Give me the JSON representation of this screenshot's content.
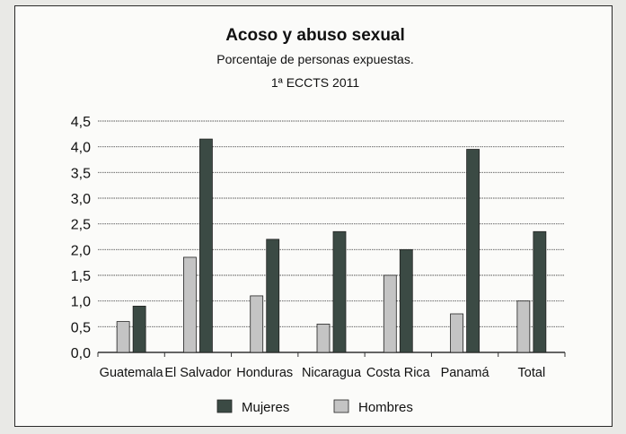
{
  "chart_data": {
    "type": "bar",
    "title": "Acoso y abuso sexual",
    "subtitle": "Porcentaje de personas expuestas.",
    "subtitle2": "1ª ECCTS 2011",
    "categories": [
      "Guatemala",
      "El Salvador",
      "Honduras",
      "Nicaragua",
      "Costa Rica",
      "Panamá",
      "Total"
    ],
    "series": [
      {
        "name": "Hombres",
        "color": "#c4c4c4",
        "values": [
          0.6,
          1.85,
          1.1,
          0.55,
          1.5,
          0.75,
          1.0
        ]
      },
      {
        "name": "Mujeres",
        "color": "#3b4a44",
        "values": [
          0.9,
          4.15,
          2.2,
          2.35,
          2.0,
          3.95,
          2.35
        ]
      }
    ],
    "ylim": [
      0,
      4.5
    ],
    "yticks": [
      "0,0",
      "0,5",
      "1,0",
      "1,5",
      "2,0",
      "2,5",
      "3,0",
      "3,5",
      "4,0",
      "4,5"
    ],
    "grid": true,
    "legend": {
      "position": "bottom",
      "entries": [
        {
          "label": "Mujeres",
          "color": "#3b4a44"
        },
        {
          "label": "Hombres",
          "color": "#c4c4c4"
        }
      ]
    }
  }
}
